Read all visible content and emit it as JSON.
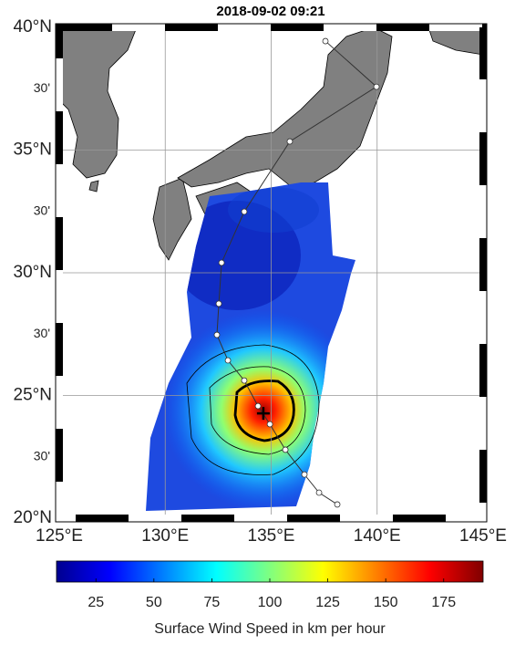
{
  "title": "2018-09-02 09:21",
  "map": {
    "xlim": [
      125,
      145
    ],
    "ylim": [
      20,
      40
    ],
    "xticks": [
      {
        "value": 125,
        "label": "125°E"
      },
      {
        "value": 130,
        "label": "130°E"
      },
      {
        "value": 135,
        "label": "135°E"
      },
      {
        "value": 140,
        "label": "140°E"
      },
      {
        "value": 145,
        "label": "145°E"
      }
    ],
    "yticks": [
      {
        "value": 20,
        "label": "20°N"
      },
      {
        "value": 25,
        "label": "25°N"
      },
      {
        "value": 30,
        "label": "30°N"
      },
      {
        "value": 35,
        "label": "35°N"
      },
      {
        "value": 40,
        "label": "40°N"
      }
    ],
    "minor_yticks": [
      {
        "value": 22.5,
        "label": "30'"
      },
      {
        "value": 27.5,
        "label": "30'"
      },
      {
        "value": 32.5,
        "label": "30'"
      },
      {
        "value": 37.5,
        "label": "30'"
      }
    ],
    "track": {
      "lon": [
        137.56,
        139.97,
        135.88,
        133.73,
        132.66,
        132.53,
        132.44,
        132.96,
        133.73,
        134.38,
        134.94,
        135.67,
        136.57,
        137.26,
        138.12
      ],
      "lat": [
        39.44,
        37.58,
        35.35,
        32.49,
        30.41,
        28.74,
        27.47,
        26.43,
        25.61,
        24.57,
        23.83,
        22.79,
        21.78,
        21.04,
        20.56
      ]
    },
    "center": {
      "lon": 134.63,
      "lat": 24.27
    }
  },
  "colorbar": {
    "lim": [
      8,
      192
    ],
    "ticks": [
      25,
      50,
      75,
      100,
      125,
      150,
      175
    ],
    "label": "Surface Wind Speed in km per hour"
  }
}
